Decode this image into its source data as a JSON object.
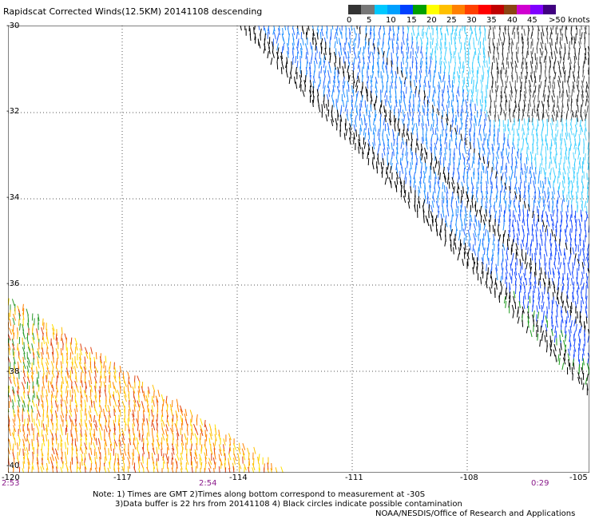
{
  "title": "Rapidscat Corrected Winds(12.5KM) 20141108 descending",
  "legend": {
    "labels": [
      "0",
      "5",
      "10",
      "15",
      "20",
      "25",
      "30",
      "35",
      "40",
      "45",
      ">50 knots"
    ],
    "colors": [
      "#333333",
      "#777777",
      "#00c8ff",
      "#00a0ff",
      "#0040ff",
      "#00a000",
      "#ffff00",
      "#ffc000",
      "#ff8000",
      "#ff4000",
      "#ff0000",
      "#c00000",
      "#8b4513",
      "#d000d0",
      "#8000ff",
      "#400080"
    ]
  },
  "map": {
    "lat_labels": [
      "-30",
      "-32",
      "-34",
      "-36",
      "-38",
      "-40"
    ],
    "lon_labels": [
      "-120",
      "-117",
      "-114",
      "-111",
      "-108",
      "-105"
    ],
    "time_labels": [
      "2:53",
      "2:54",
      "0:29"
    ]
  },
  "notes": {
    "line1": "Note: 1) Times are GMT 2)Times along bottom correspond to measurement at -30S",
    "line2": "3)Data buffer is 22 hrs from 20141108 4) Black circles indicate possible contamination",
    "credit": "NOAA/NESDIS/Office of Research and Applications"
  }
}
